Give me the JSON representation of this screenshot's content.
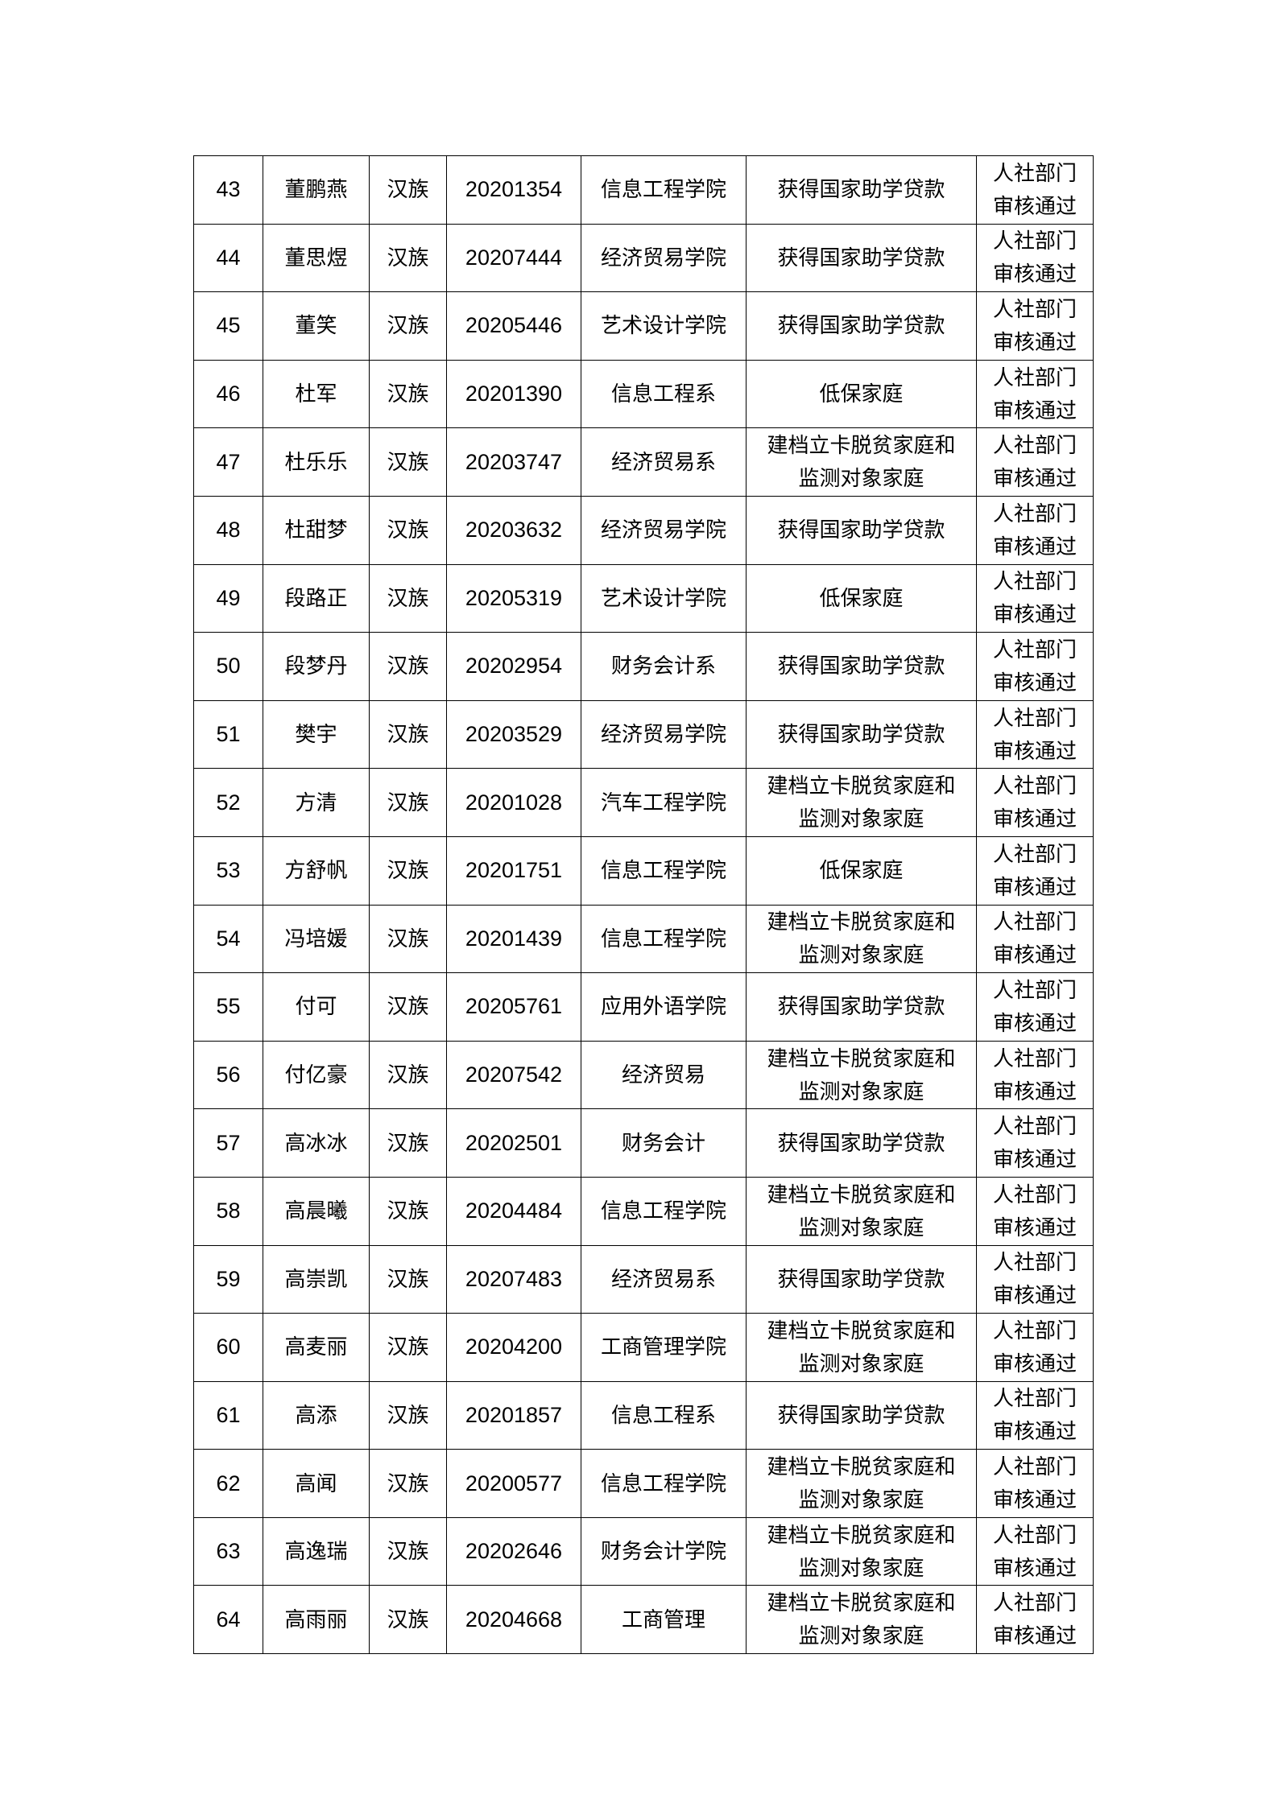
{
  "rows": [
    {
      "no": "43",
      "name": "董鹏燕",
      "ethnicity": "汉族",
      "id": "20201354",
      "college": "信息工程学院",
      "type": [
        "获得国家助学贷款"
      ],
      "status": [
        "人社部门",
        "审核通过"
      ]
    },
    {
      "no": "44",
      "name": "董思煜",
      "ethnicity": "汉族",
      "id": "20207444",
      "college": "经济贸易学院",
      "type": [
        "获得国家助学贷款"
      ],
      "status": [
        "人社部门",
        "审核通过"
      ]
    },
    {
      "no": "45",
      "name": "董笑",
      "ethnicity": "汉族",
      "id": "20205446",
      "college": "艺术设计学院",
      "type": [
        "获得国家助学贷款"
      ],
      "status": [
        "人社部门",
        "审核通过"
      ]
    },
    {
      "no": "46",
      "name": "杜军",
      "ethnicity": "汉族",
      "id": "20201390",
      "college": "信息工程系",
      "type": [
        "低保家庭"
      ],
      "status": [
        "人社部门",
        "审核通过"
      ]
    },
    {
      "no": "47",
      "name": "杜乐乐",
      "ethnicity": "汉族",
      "id": "20203747",
      "college": "经济贸易系",
      "type": [
        "建档立卡脱贫家庭和",
        "监测对象家庭"
      ],
      "status": [
        "人社部门",
        "审核通过"
      ]
    },
    {
      "no": "48",
      "name": "杜甜梦",
      "ethnicity": "汉族",
      "id": "20203632",
      "college": "经济贸易学院",
      "type": [
        "获得国家助学贷款"
      ],
      "status": [
        "人社部门",
        "审核通过"
      ]
    },
    {
      "no": "49",
      "name": "段路正",
      "ethnicity": "汉族",
      "id": "20205319",
      "college": "艺术设计学院",
      "type": [
        "低保家庭"
      ],
      "status": [
        "人社部门",
        "审核通过"
      ]
    },
    {
      "no": "50",
      "name": "段梦丹",
      "ethnicity": "汉族",
      "id": "20202954",
      "college": "财务会计系",
      "type": [
        "获得国家助学贷款"
      ],
      "status": [
        "人社部门",
        "审核通过"
      ]
    },
    {
      "no": "51",
      "name": "樊宇",
      "ethnicity": "汉族",
      "id": "20203529",
      "college": "经济贸易学院",
      "type": [
        "获得国家助学贷款"
      ],
      "status": [
        "人社部门",
        "审核通过"
      ]
    },
    {
      "no": "52",
      "name": "方清",
      "ethnicity": "汉族",
      "id": "20201028",
      "college": "汽车工程学院",
      "type": [
        "建档立卡脱贫家庭和",
        "监测对象家庭"
      ],
      "status": [
        "人社部门",
        "审核通过"
      ]
    },
    {
      "no": "53",
      "name": "方舒帆",
      "ethnicity": "汉族",
      "id": "20201751",
      "college": "信息工程学院",
      "type": [
        "低保家庭"
      ],
      "status": [
        "人社部门",
        "审核通过"
      ]
    },
    {
      "no": "54",
      "name": "冯培媛",
      "ethnicity": "汉族",
      "id": "20201439",
      "college": "信息工程学院",
      "type": [
        "建档立卡脱贫家庭和",
        "监测对象家庭"
      ],
      "status": [
        "人社部门",
        "审核通过"
      ]
    },
    {
      "no": "55",
      "name": "付可",
      "ethnicity": "汉族",
      "id": "20205761",
      "college": "应用外语学院",
      "type": [
        "获得国家助学贷款"
      ],
      "status": [
        "人社部门",
        "审核通过"
      ]
    },
    {
      "no": "56",
      "name": "付亿豪",
      "ethnicity": "汉族",
      "id": "20207542",
      "college": "经济贸易",
      "type": [
        "建档立卡脱贫家庭和",
        "监测对象家庭"
      ],
      "status": [
        "人社部门",
        "审核通过"
      ]
    },
    {
      "no": "57",
      "name": "高冰冰",
      "ethnicity": "汉族",
      "id": "20202501",
      "college": "财务会计",
      "type": [
        "获得国家助学贷款"
      ],
      "status": [
        "人社部门",
        "审核通过"
      ]
    },
    {
      "no": "58",
      "name": "高晨曦",
      "ethnicity": "汉族",
      "id": "20204484",
      "college": "信息工程学院",
      "type": [
        "建档立卡脱贫家庭和",
        "监测对象家庭"
      ],
      "status": [
        "人社部门",
        "审核通过"
      ]
    },
    {
      "no": "59",
      "name": "高崇凯",
      "ethnicity": "汉族",
      "id": "20207483",
      "college": "经济贸易系",
      "type": [
        "获得国家助学贷款"
      ],
      "status": [
        "人社部门",
        "审核通过"
      ]
    },
    {
      "no": "60",
      "name": "高麦丽",
      "ethnicity": "汉族",
      "id": "20204200",
      "college": "工商管理学院",
      "type": [
        "建档立卡脱贫家庭和",
        "监测对象家庭"
      ],
      "status": [
        "人社部门",
        "审核通过"
      ]
    },
    {
      "no": "61",
      "name": "高添",
      "ethnicity": "汉族",
      "id": "20201857",
      "college": "信息工程系",
      "type": [
        "获得国家助学贷款"
      ],
      "status": [
        "人社部门",
        "审核通过"
      ]
    },
    {
      "no": "62",
      "name": "高闻",
      "ethnicity": "汉族",
      "id": "20200577",
      "college": "信息工程学院",
      "type": [
        "建档立卡脱贫家庭和",
        "监测对象家庭"
      ],
      "status": [
        "人社部门",
        "审核通过"
      ]
    },
    {
      "no": "63",
      "name": "高逸瑞",
      "ethnicity": "汉族",
      "id": "20202646",
      "college": "财务会计学院",
      "type": [
        "建档立卡脱贫家庭和",
        "监测对象家庭"
      ],
      "status": [
        "人社部门",
        "审核通过"
      ]
    },
    {
      "no": "64",
      "name": "高雨丽",
      "ethnicity": "汉族",
      "id": "20204668",
      "college": "工商管理",
      "type": [
        "建档立卡脱贫家庭和",
        "监测对象家庭"
      ],
      "status": [
        "人社部门",
        "审核通过"
      ]
    }
  ]
}
